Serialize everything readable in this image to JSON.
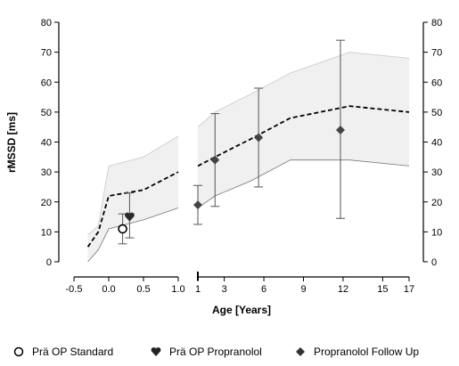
{
  "chart_data": {
    "type": "line",
    "xlabel": "Age [Years]",
    "ylabel": "rMSSD [ms]",
    "ylim": [
      0,
      80
    ],
    "yticks": [
      "0",
      "10",
      "20",
      "30",
      "40",
      "50",
      "60",
      "70",
      "80"
    ],
    "x_segments": [
      {
        "range": [
          -0.5,
          1.0
        ],
        "ticks": [
          "-0.5",
          "0.0",
          "0.5",
          "1.0"
        ]
      },
      {
        "range": [
          1,
          17
        ],
        "ticks": [
          "1",
          "3",
          "6",
          "9",
          "12",
          "15",
          "17"
        ]
      }
    ],
    "reference": {
      "segment1": {
        "x": [
          -0.3,
          -0.15,
          0.0,
          0.5,
          1.0
        ],
        "upper": [
          9,
          12,
          32,
          35,
          42
        ],
        "lower": [
          0,
          4,
          11,
          14,
          18
        ],
        "mean": [
          5,
          10,
          22,
          24,
          30
        ]
      },
      "segment2": {
        "x": [
          1,
          2.3,
          5,
          8,
          12.5,
          17
        ],
        "upper": [
          45,
          50,
          56,
          63,
          70,
          68
        ],
        "lower": [
          18,
          22,
          27,
          34,
          34,
          32
        ],
        "mean": [
          32,
          35,
          41,
          48,
          52,
          50
        ]
      }
    },
    "series": [
      {
        "name": "Prä OP Standard",
        "marker": "open-circle",
        "points": [
          {
            "x": 0.2,
            "y": 11,
            "err_low": 6,
            "err_high": 16
          }
        ]
      },
      {
        "name": "Prä OP Propranolol",
        "marker": "heart",
        "points": [
          {
            "x": 0.3,
            "y": 15,
            "err_low": 8,
            "err_high": 23
          }
        ]
      },
      {
        "name": "Propranolol Follow Up",
        "marker": "diamond",
        "points": [
          {
            "x": 1.0,
            "y": 19,
            "err_low": 12.5,
            "err_high": 25.5
          },
          {
            "x": 2.3,
            "y": 34,
            "err_low": 18.5,
            "err_high": 49.5
          },
          {
            "x": 5.6,
            "y": 41.5,
            "err_low": 25,
            "err_high": 58
          },
          {
            "x": 11.8,
            "y": 44,
            "err_low": 14.5,
            "err_high": 74
          }
        ]
      }
    ],
    "legend": {
      "placement": "bottom"
    }
  },
  "colors": {
    "band": "#f0f0f0",
    "band_edge": "#c8c8c8",
    "mean_line": "#000000",
    "marker": "#444444",
    "error_bar": "#555555"
  }
}
